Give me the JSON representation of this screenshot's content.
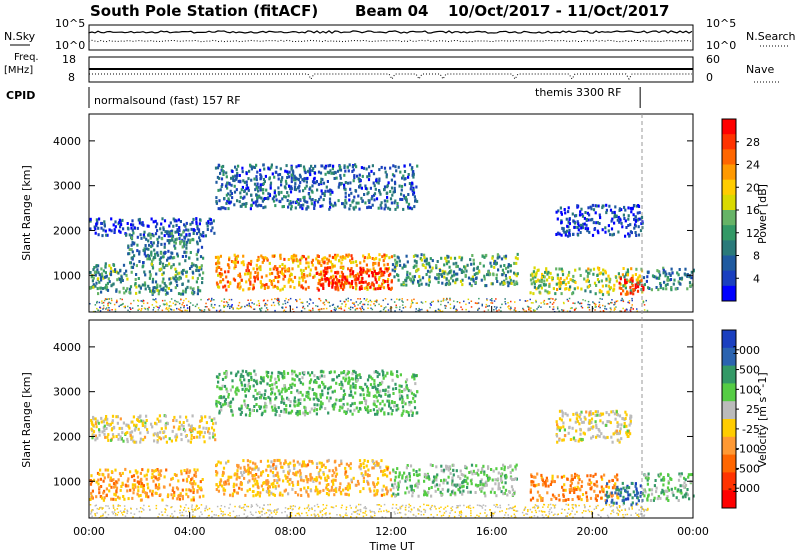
{
  "header": {
    "station": "South Pole Station (fitACF)",
    "beam": "Beam 04",
    "date_range": "10/Oct/2017 - 11/Oct/2017"
  },
  "left_labels": {
    "nsky": "N.Sky",
    "nsky_top": "10^5",
    "nsky_bottom": "10^0",
    "freq_l1": "Freq.",
    "freq_l2": "[MHz]",
    "freq_top": "18",
    "freq_bottom": "8",
    "cpid": "CPID"
  },
  "right_labels": {
    "nsearch": "N.Search",
    "nsearch_top": "10^5",
    "nsearch_bottom": "10^0",
    "nave": "Nave",
    "nave_top": "60",
    "nave_bottom": "0"
  },
  "cpid_text": {
    "left": "normalsound (fast) 157 RF",
    "right": "themis 3300 RF"
  },
  "xaxis": {
    "ticks": [
      "00:00",
      "04:00",
      "08:00",
      "12:00",
      "16:00",
      "20:00",
      "00:00"
    ],
    "label": "Time UT"
  },
  "power_panel": {
    "ylabel": "Slant Range [km]",
    "yticks": [
      "1000",
      "2000",
      "3000",
      "4000"
    ],
    "colorbar_label": "Power [dB]",
    "colorbar_ticks": [
      "28",
      "24",
      "20",
      "16",
      "12",
      "8",
      "4"
    ],
    "colorbar_colors": [
      "#ff0000",
      "#ff3300",
      "#ff6600",
      "#ff9900",
      "#ffcc00",
      "#d9d900",
      "#66b366",
      "#339966",
      "#2a7a7a",
      "#1f5aa0",
      "#1a3fbf",
      "#0000ff"
    ]
  },
  "velocity_panel": {
    "ylabel": "Slant Range [km]",
    "yticks": [
      "1000",
      "2000",
      "3000",
      "4000"
    ],
    "colorbar_label": "Velocity [m s^-1]",
    "colorbar_ticks": [
      "1000",
      "500",
      "100",
      "25",
      "-25",
      "-100",
      "-500",
      "-1000"
    ],
    "colorbar_colors": [
      "#1a3fbf",
      "#2a63b0",
      "#339966",
      "#55cc44",
      "#bbbbbb",
      "#ffcc00",
      "#ff9933",
      "#ff6600",
      "#ff3300",
      "#ff0000"
    ]
  },
  "chart_data": {
    "type": "heatmap",
    "time_range_hours": [
      0,
      24
    ],
    "range_km": [
      180,
      4600
    ],
    "cpid_switch_hour": 21.9,
    "power_bands": [
      {
        "t0": 0.0,
        "t1": 5.0,
        "r0": 1900,
        "r1": 2300,
        "power": 6
      },
      {
        "t0": 0.0,
        "t1": 4.5,
        "r0": 600,
        "r1": 1300,
        "power": 12
      },
      {
        "t0": 1.5,
        "t1": 4.5,
        "r0": 1300,
        "r1": 2000,
        "power": 10
      },
      {
        "t0": 5.0,
        "t1": 12.0,
        "r0": 700,
        "r1": 1500,
        "power": 22
      },
      {
        "t0": 9.0,
        "t1": 12.0,
        "r0": 700,
        "r1": 1200,
        "power": 28
      },
      {
        "t0": 12.0,
        "t1": 17.0,
        "r0": 800,
        "r1": 1500,
        "power": 12
      },
      {
        "t0": 17.5,
        "t1": 22.0,
        "r0": 600,
        "r1": 1200,
        "power": 16
      },
      {
        "t0": 21.0,
        "t1": 22.0,
        "r0": 600,
        "r1": 1000,
        "power": 28
      },
      {
        "t0": 22.0,
        "t1": 24.0,
        "r0": 700,
        "r1": 1200,
        "power": 10
      },
      {
        "t0": 18.5,
        "t1": 22.0,
        "r0": 1900,
        "r1": 2600,
        "power": 6
      },
      {
        "t0": 5.0,
        "t1": 13.0,
        "r0": 2500,
        "r1": 3500,
        "power": 8
      }
    ],
    "velocity_bands": [
      {
        "t0": 0.0,
        "t1": 5.0,
        "r0": 1900,
        "r1": 2500,
        "velocity": 0
      },
      {
        "t0": 0.0,
        "t1": 4.5,
        "r0": 600,
        "r1": 1300,
        "velocity": -300
      },
      {
        "t0": 5.0,
        "t1": 12.0,
        "r0": 700,
        "r1": 1500,
        "velocity": -200
      },
      {
        "t0": 12.0,
        "t1": 17.0,
        "r0": 700,
        "r1": 1400,
        "velocity": 300
      },
      {
        "t0": 17.5,
        "t1": 21.0,
        "r0": 600,
        "r1": 1200,
        "velocity": -400
      },
      {
        "t0": 20.5,
        "t1": 22.0,
        "r0": 500,
        "r1": 1000,
        "velocity": 700
      },
      {
        "t0": 22.0,
        "t1": 24.0,
        "r0": 600,
        "r1": 1200,
        "velocity": 300
      },
      {
        "t0": 18.5,
        "t1": 21.5,
        "r0": 1900,
        "r1": 2600,
        "velocity": 0
      },
      {
        "t0": 5.0,
        "t1": 13.0,
        "r0": 2500,
        "r1": 3500,
        "velocity": 400
      }
    ]
  }
}
